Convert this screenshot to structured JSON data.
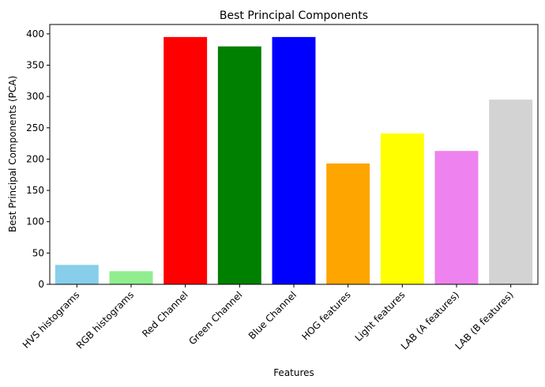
{
  "chart_data": {
    "type": "bar",
    "title": "Best Principal Components",
    "xlabel": "Features",
    "ylabel": "Best Principal Components (PCA)",
    "categories": [
      "HVS histograms",
      "RGB histograms",
      "Red Channel",
      "Green Channel",
      "Blue Channel",
      "HOG features",
      "Light features",
      "LAB (A features)",
      "LAB (B features)"
    ],
    "values": [
      31,
      21,
      395,
      380,
      395,
      193,
      241,
      213,
      295
    ],
    "colors": [
      "#87ceeb",
      "#90ee90",
      "#ff0000",
      "#008000",
      "#0000ff",
      "#ffa500",
      "#ffff00",
      "#ee82ee",
      "#d3d3d3"
    ],
    "ylim": [
      0,
      415
    ],
    "yticks": [
      0,
      50,
      100,
      150,
      200,
      250,
      300,
      350,
      400
    ],
    "grid": false,
    "legend": "none"
  }
}
